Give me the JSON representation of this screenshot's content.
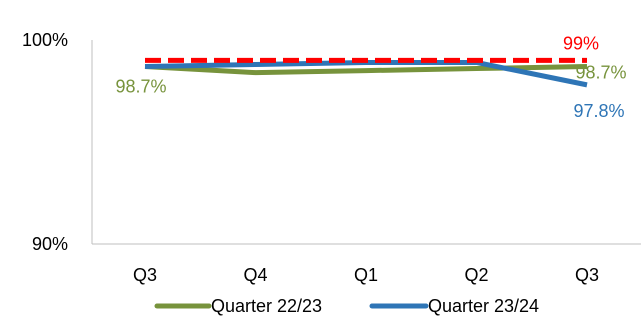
{
  "chart_data": {
    "type": "line",
    "categories": [
      "Q3",
      "Q4",
      "Q1",
      "Q2",
      "Q3"
    ],
    "ylim": [
      90,
      100
    ],
    "yticks": [
      {
        "value": 100,
        "label": "100%"
      },
      {
        "value": 90,
        "label": "90%"
      }
    ],
    "series": [
      {
        "name": "Quarter 22/23",
        "color": "#77933c",
        "values": [
          98.7,
          98.4,
          98.5,
          98.6,
          98.7
        ]
      },
      {
        "name": "Quarter 23/24",
        "color": "#2e75b6",
        "values": [
          98.7,
          98.8,
          98.9,
          98.9,
          97.8
        ]
      }
    ],
    "target": {
      "value": 99,
      "color": "#ff0000",
      "style": "dashed"
    },
    "data_labels": [
      {
        "text": "98.7%",
        "series": 0,
        "index": 0,
        "color": "#77933c"
      },
      {
        "text": "99%",
        "series": "target",
        "index": 4,
        "color": "#ff0000"
      },
      {
        "text": "98.7%",
        "series": 0,
        "index": 4,
        "color": "#77933c"
      },
      {
        "text": "97.8%",
        "series": 1,
        "index": 4,
        "color": "#2e75b6"
      }
    ],
    "legend": {
      "placement": "bottom"
    },
    "grid": false
  }
}
